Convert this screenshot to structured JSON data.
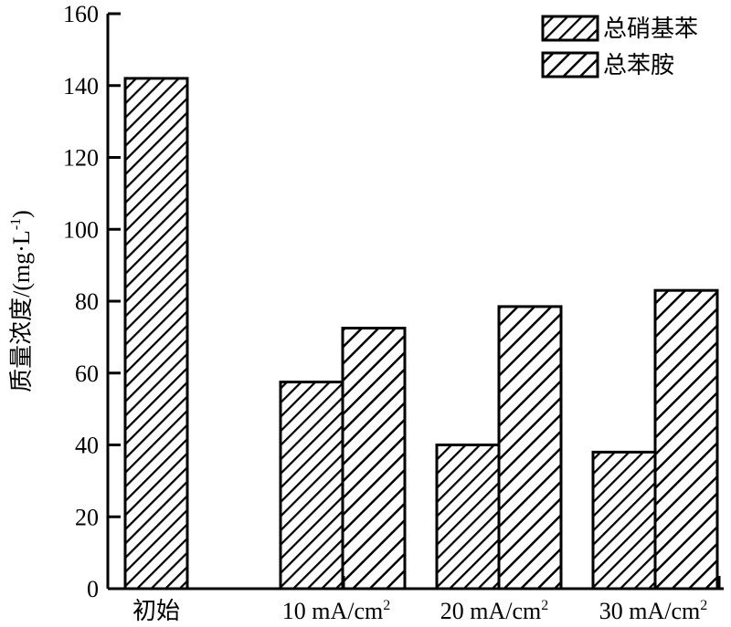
{
  "chart_data": {
    "type": "bar",
    "title": "",
    "xlabel": "",
    "ylabel": "质量浓度/(mg·L⁻¹)",
    "ylabel_main": "质量浓度/(mg·L",
    "ylabel_sup": "-1",
    "ylabel_close": ")",
    "ylim": [
      0,
      160
    ],
    "yticks": [
      "0",
      "20",
      "40",
      "60",
      "80",
      "100",
      "120",
      "140",
      "160"
    ],
    "categories": [
      "初始",
      "10 mA/cm²",
      "20 mA/cm²",
      "30 mA/cm²"
    ],
    "category_labels": [
      {
        "main": "初始",
        "sup": ""
      },
      {
        "main": "10 mA/cm",
        "sup": "2"
      },
      {
        "main": "20 mA/cm",
        "sup": "2"
      },
      {
        "main": "30 mA/cm",
        "sup": "2"
      }
    ],
    "series": [
      {
        "name": "总硝基苯",
        "values": [
          142,
          57.5,
          40,
          38
        ],
        "pattern": "hatch-fine"
      },
      {
        "name": "总苯胺",
        "values": [
          null,
          72.5,
          78.5,
          83
        ],
        "pattern": "hatch-coarse"
      }
    ],
    "first_category_single_bar": true,
    "legend_position": "top-right",
    "grid": false,
    "colors": {
      "bar_fill": "#ffffff",
      "stroke": "#000000"
    }
  }
}
